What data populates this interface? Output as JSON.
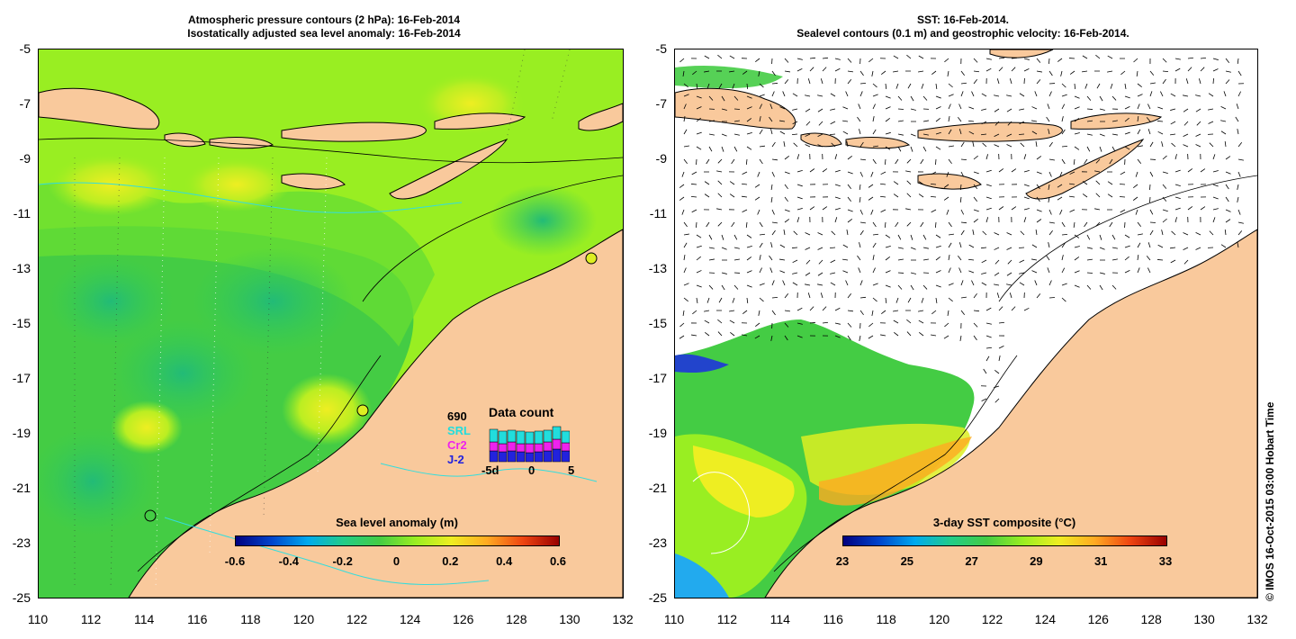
{
  "left_panel": {
    "title_line1": "Atmospheric pressure contours (2 hPa): 16-Feb-2014",
    "title_line2": "Isostatically adjusted sea level anomaly: 16-Feb-2014",
    "y_ticks": [
      "-5",
      "-7",
      "-9",
      "-11",
      "-13",
      "-15",
      "-17",
      "-19",
      "-21",
      "-23",
      "-25"
    ],
    "x_ticks": [
      "110",
      "112",
      "114",
      "116",
      "118",
      "120",
      "122",
      "124",
      "126",
      "128",
      "130",
      "132"
    ],
    "colorbar_label": "Sea level anomaly (m)",
    "colorbar_ticks": [
      "-0.6",
      "-0.4",
      "-0.2",
      "0",
      "0.2",
      "0.4",
      "0.6"
    ],
    "data_count": {
      "title": "Data count",
      "count": "690",
      "satellites": [
        "SRL",
        "Cr2",
        "J-2"
      ],
      "satellite_colors": [
        "#22dddd",
        "#ee22ee",
        "#2222dd"
      ],
      "axis_ticks": [
        "-5d",
        "0",
        "5"
      ]
    }
  },
  "right_panel": {
    "title_line1": "SST: 16-Feb-2014.",
    "title_line2": "Sealevel contours (0.1 m) and geostrophic velocity: 16-Feb-2014.",
    "y_ticks": [
      "-5",
      "-7",
      "-9",
      "-11",
      "-13",
      "-15",
      "-17",
      "-19",
      "-21",
      "-23",
      "-25"
    ],
    "x_ticks": [
      "110",
      "112",
      "114",
      "116",
      "118",
      "120",
      "122",
      "124",
      "126",
      "128",
      "130",
      "132"
    ],
    "colorbar_label": "3-day SST composite (°C)",
    "colorbar_ticks": [
      "23",
      "25",
      "27",
      "29",
      "31",
      "33"
    ]
  },
  "credit": "© IMOS 16-Oct-2015 03:00 Hobart Time",
  "colors": {
    "land": "#f9c99c",
    "sea_green": "#44cc44",
    "sea_yellowgreen": "#99ee22",
    "coast_cyan": "#33dddd"
  }
}
